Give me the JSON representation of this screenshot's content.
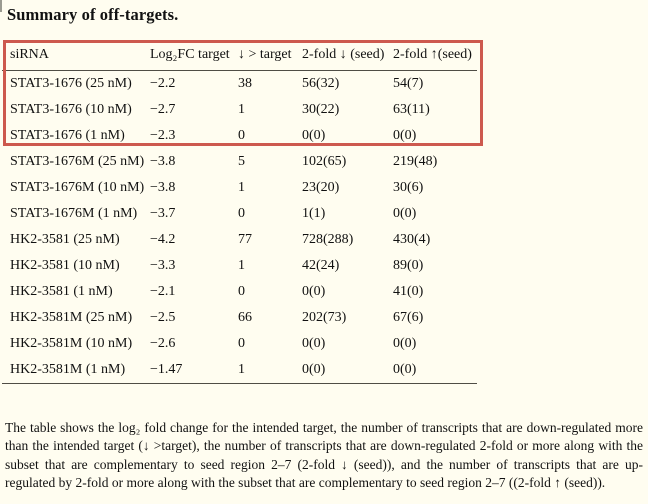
{
  "page": {
    "title": "Summary of off-targets.",
    "background_color": "#fffdf0",
    "highlight_color": "#cd594e",
    "rule_color": "#4f4d45"
  },
  "table": {
    "columns": [
      "siRNA",
      "Log₂FC target",
      "↓ > target",
      "2-fold ↓ (seed)",
      "2-fold ↑(seed)"
    ],
    "rows": [
      [
        "STAT3-1676 (25 nM)",
        "−2.2",
        "38",
        "56(32)",
        "54(7)"
      ],
      [
        "STAT3-1676 (10 nM)",
        "−2.7",
        "1",
        "30(22)",
        "63(11)"
      ],
      [
        "STAT3-1676 (1 nM)",
        "−2.3",
        "0",
        "0(0)",
        "0(0)"
      ],
      [
        "STAT3-1676M (25 nM)",
        "−3.8",
        "5",
        "102(65)",
        "219(48)"
      ],
      [
        "STAT3-1676M (10 nM)",
        "−3.8",
        "1",
        "23(20)",
        "30(6)"
      ],
      [
        "STAT3-1676M (1 nM)",
        "−3.7",
        "0",
        "1(1)",
        "0(0)"
      ],
      [
        "HK2-3581 (25 nM)",
        "−4.2",
        "77",
        "728(288)",
        "430(4)"
      ],
      [
        "HK2-3581 (10 nM)",
        "−3.3",
        "1",
        "42(24)",
        "89(0)"
      ],
      [
        "HK2-3581 (1 nM)",
        "−2.1",
        "0",
        "0(0)",
        "41(0)"
      ],
      [
        "HK2-3581M (25 nM)",
        "−2.5",
        "66",
        "202(73)",
        "67(6)"
      ],
      [
        "HK2-3581M (10 nM)",
        "−2.6",
        "0",
        "0(0)",
        "0(0)"
      ],
      [
        "HK2-3581M (1 nM)",
        "−1.47",
        "1",
        "0(0)",
        "0(0)"
      ]
    ],
    "highlighted_row_count": 3
  },
  "caption": {
    "text": "The table shows the log₂ fold change for the intended target, the number of transcripts that are down-regulated more than the intended target (↓ >target), the number of transcripts that are down-regulated 2-fold or more along with the subset that are complementary to seed region 2–7 (2-fold ↓ (seed)), and the number of transcripts that are up-regulated by 2-fold or more along with the subset that are complementary to seed region 2–7 ((2-fold ↑ (seed))."
  }
}
